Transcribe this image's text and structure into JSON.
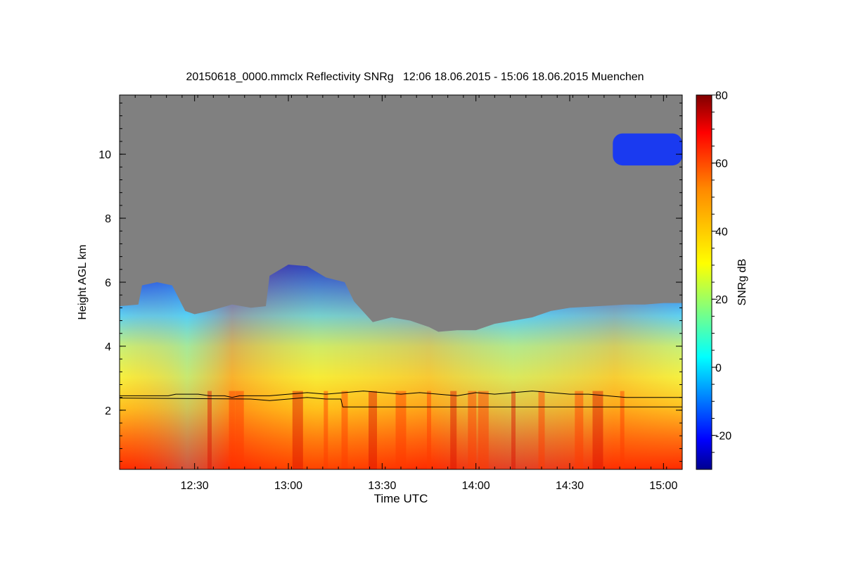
{
  "chart_data": {
    "type": "heatmap",
    "title": "20150618_0000.mmclx Reflectivity SNRg   12:06 18.06.2015 - 15:06 18.06.2015 Muenchen",
    "xlabel": "Time UTC",
    "ylabel": "Height AGL km",
    "x_range_hours": [
      12.1,
      15.1
    ],
    "x_ticks": [
      {
        "value": 12.5,
        "label": "12:30"
      },
      {
        "value": 13.0,
        "label": "13:00"
      },
      {
        "value": 13.5,
        "label": "13:30"
      },
      {
        "value": 14.0,
        "label": "14:00"
      },
      {
        "value": 14.5,
        "label": "14:30"
      },
      {
        "value": 15.0,
        "label": "15:00"
      }
    ],
    "y_range_km": [
      0.15,
      11.85
    ],
    "y_ticks": [
      {
        "value": 2,
        "label": "2"
      },
      {
        "value": 4,
        "label": "4"
      },
      {
        "value": 6,
        "label": "6"
      },
      {
        "value": 8,
        "label": "8"
      },
      {
        "value": 10,
        "label": "10"
      }
    ],
    "colorbar": {
      "label": "SNRg dB",
      "range": [
        -30,
        80
      ],
      "ticks": [
        {
          "value": -20,
          "label": "-20"
        },
        {
          "value": 0,
          "label": "0"
        },
        {
          "value": 20,
          "label": "20"
        },
        {
          "value": 40,
          "label": "40"
        },
        {
          "value": 60,
          "label": "60"
        },
        {
          "value": 80,
          "label": "80"
        }
      ]
    },
    "no_signal_color": "#808080",
    "cloud_top_km": [
      [
        12.1,
        5.25
      ],
      [
        12.2,
        5.3
      ],
      [
        12.22,
        5.9
      ],
      [
        12.3,
        6.0
      ],
      [
        12.38,
        5.9
      ],
      [
        12.45,
        5.1
      ],
      [
        12.5,
        5.0
      ],
      [
        12.58,
        5.1
      ],
      [
        12.7,
        5.3
      ],
      [
        12.8,
        5.2
      ],
      [
        12.88,
        5.25
      ],
      [
        12.9,
        6.2
      ],
      [
        13.0,
        6.55
      ],
      [
        13.1,
        6.5
      ],
      [
        13.2,
        6.15
      ],
      [
        13.3,
        6.0
      ],
      [
        13.35,
        5.4
      ],
      [
        13.45,
        4.75
      ],
      [
        13.55,
        4.9
      ],
      [
        13.65,
        4.8
      ],
      [
        13.75,
        4.6
      ],
      [
        13.8,
        4.45
      ],
      [
        13.9,
        4.5
      ],
      [
        14.0,
        4.5
      ],
      [
        14.1,
        4.7
      ],
      [
        14.2,
        4.8
      ],
      [
        14.3,
        4.9
      ],
      [
        14.4,
        5.1
      ],
      [
        14.5,
        5.2
      ],
      [
        14.65,
        5.25
      ],
      [
        14.8,
        5.3
      ],
      [
        14.9,
        5.3
      ],
      [
        15.0,
        5.35
      ],
      [
        15.1,
        5.35
      ]
    ],
    "upper_cloud_layer": {
      "time": [
        14.73,
        15.1
      ],
      "base_km": 9.65,
      "top_km": 10.65
    },
    "series": [
      {
        "name": "upper boundary line",
        "x": [
          12.1,
          12.36,
          12.4,
          12.52,
          12.58,
          12.66,
          12.7,
          12.74,
          12.8,
          12.9,
          13.0,
          13.1,
          13.2,
          13.3,
          13.4,
          13.5,
          13.6,
          13.7,
          13.8,
          13.9,
          14.0,
          14.1,
          14.2,
          14.3,
          14.4,
          14.5,
          14.6,
          14.7,
          14.8,
          15.1
        ],
        "y": [
          2.45,
          2.45,
          2.5,
          2.5,
          2.45,
          2.45,
          2.4,
          2.45,
          2.45,
          2.45,
          2.5,
          2.55,
          2.5,
          2.55,
          2.6,
          2.55,
          2.5,
          2.55,
          2.5,
          2.45,
          2.55,
          2.5,
          2.55,
          2.6,
          2.55,
          2.5,
          2.5,
          2.45,
          2.4,
          2.4
        ]
      },
      {
        "name": "lower boundary line",
        "x": [
          12.1,
          12.8,
          12.9,
          13.0,
          13.1,
          13.2,
          13.28,
          13.29,
          15.1
        ],
        "y": [
          2.38,
          2.35,
          2.3,
          2.35,
          2.4,
          2.35,
          2.35,
          2.1,
          2.1
        ]
      }
    ]
  }
}
